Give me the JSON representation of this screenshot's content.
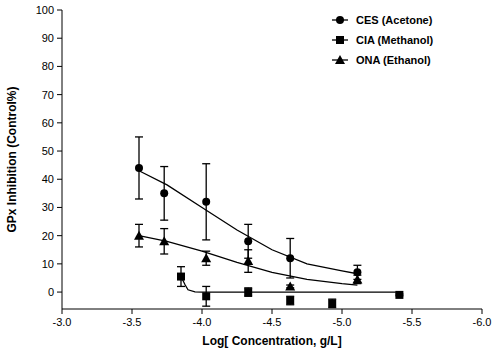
{
  "chart_data": {
    "type": "scatter",
    "x_label": "Log[ Concentration, g/L]",
    "y_label": "GPx Inhibition (Control%)",
    "xlim": [
      -3.0,
      -6.0
    ],
    "xticks": [
      {
        "value": -3.0,
        "label": "-3.0"
      },
      -3.5,
      {
        "value": -4.0,
        "label": "-4.0"
      },
      -4.5,
      {
        "value": -5.0,
        "label": "-5.0"
      },
      -5.5,
      {
        "value": -6.0,
        "label": "-6.0"
      }
    ],
    "ylim": [
      -6,
      100
    ],
    "yticks": [
      0,
      10,
      20,
      30,
      40,
      50,
      60,
      70,
      80,
      90,
      100
    ],
    "legend": "top-right",
    "series": [
      {
        "name": "CES (Acetone)",
        "color": "#000000",
        "marker": "circle",
        "x": [
          -3.55,
          -3.73,
          -4.03,
          -4.33,
          -4.63,
          -5.11
        ],
        "values": [
          44,
          35,
          32,
          18,
          12,
          7
        ],
        "errors": [
          11,
          9.5,
          13.5,
          6,
          7,
          2.5
        ],
        "fit": {
          "x": [
            -3.55,
            -3.75,
            -4.0,
            -4.25,
            -4.5,
            -4.75,
            -5.0,
            -5.11
          ],
          "values": [
            43,
            38,
            30,
            22,
            15,
            10,
            7.5,
            6.5
          ]
        }
      },
      {
        "name": "CIA (Methanol)",
        "color": "#000000",
        "marker": "square",
        "x": [
          -3.85,
          -4.03,
          -4.33,
          -4.63,
          -4.93,
          -5.41
        ],
        "values": [
          5.5,
          -1.5,
          0,
          -3,
          -4,
          -1
        ],
        "errors": [
          3.5,
          3.5,
          1.5,
          1.5,
          1.5,
          0.3
        ],
        "fit": {
          "x": [
            -3.85,
            -3.88,
            -3.9,
            -3.95,
            -4.0,
            -4.5,
            -5.0,
            -5.41
          ],
          "values": [
            5.5,
            2.5,
            0.8,
            0.1,
            0,
            0,
            0,
            0
          ]
        }
      },
      {
        "name": "ONA (Ethanol)",
        "color": "#000000",
        "marker": "triangle",
        "x": [
          -3.55,
          -3.73,
          -4.03,
          -4.33,
          -4.63,
          -5.11
        ],
        "values": [
          20,
          18,
          12,
          11,
          2,
          4.5
        ],
        "errors": [
          4,
          4.5,
          2.5,
          4,
          0.5,
          1.5
        ],
        "fit": {
          "x": [
            -3.55,
            -3.75,
            -4.0,
            -4.25,
            -4.5,
            -4.75,
            -5.0,
            -5.11
          ],
          "values": [
            20,
            18,
            14.5,
            10.5,
            7,
            4.5,
            3,
            2.5
          ]
        }
      }
    ]
  }
}
